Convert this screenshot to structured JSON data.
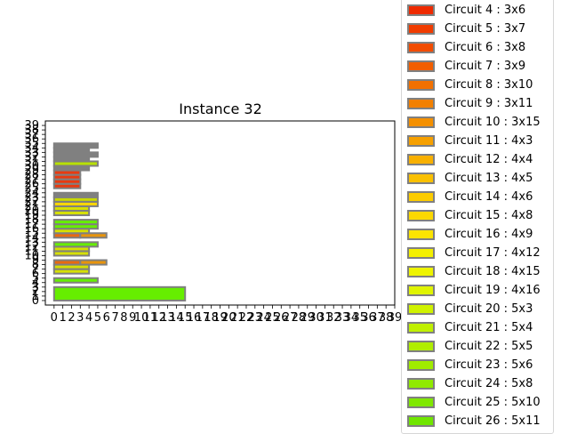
{
  "chart_data": {
    "type": "bar",
    "title": "Instance 32",
    "xlabel": "",
    "ylabel": "",
    "xlim": [
      -1,
      39
    ],
    "ylim": [
      -1,
      40
    ],
    "xticks": [
      "0",
      "1",
      "2",
      "3",
      "4",
      "5",
      "6",
      "7",
      "8",
      "9",
      "10",
      "11",
      "12",
      "13",
      "14",
      "15",
      "16",
      "17",
      "18",
      "19",
      "20",
      "21",
      "22",
      "23",
      "24",
      "25",
      "26",
      "27",
      "28",
      "29",
      "30",
      "31",
      "32",
      "33",
      "34",
      "35",
      "36",
      "37",
      "38",
      "39"
    ],
    "legend_position": "right (outside)",
    "grid": false,
    "bar_edge_color": "#808080",
    "rectangles": [
      {
        "x": 0,
        "y": 0,
        "w": 15,
        "h": 3,
        "color": "#66ee00"
      },
      {
        "x": 0,
        "y": 4,
        "w": 5,
        "h": 1,
        "color": "#66ee00"
      },
      {
        "x": 0,
        "y": 6,
        "w": 4,
        "h": 1,
        "color": "#d6e000"
      },
      {
        "x": 0,
        "y": 7,
        "w": 4,
        "h": 1,
        "color": "#d6e000"
      },
      {
        "x": 0,
        "y": 8,
        "w": 3,
        "h": 1,
        "color": "#e86a10"
      },
      {
        "x": 3,
        "y": 8,
        "w": 3,
        "h": 1,
        "color": "#e8940c"
      },
      {
        "x": 0,
        "y": 10,
        "w": 4,
        "h": 1,
        "color": "#d6e000"
      },
      {
        "x": 0,
        "y": 11,
        "w": 4,
        "h": 1,
        "color": "#d6e000"
      },
      {
        "x": 0,
        "y": 12,
        "w": 5,
        "h": 1,
        "color": "#66ee00"
      },
      {
        "x": 0,
        "y": 14,
        "w": 3,
        "h": 1,
        "color": "#e86a10"
      },
      {
        "x": 3,
        "y": 14,
        "w": 3,
        "h": 1,
        "color": "#e8940c"
      },
      {
        "x": 0,
        "y": 15,
        "w": 4,
        "h": 1,
        "color": "#d6e000"
      },
      {
        "x": 0,
        "y": 16,
        "w": 5,
        "h": 1,
        "color": "#66ee00"
      },
      {
        "x": 0,
        "y": 17,
        "w": 5,
        "h": 1,
        "color": "#66ee00"
      },
      {
        "x": 0,
        "y": 19,
        "w": 4,
        "h": 1,
        "color": "#d6e000"
      },
      {
        "x": 0,
        "y": 20,
        "w": 4,
        "h": 1,
        "color": "#d6e000"
      },
      {
        "x": 0,
        "y": 21,
        "w": 5,
        "h": 1,
        "color": "#ffd700"
      },
      {
        "x": 0,
        "y": 22,
        "w": 5,
        "h": 1,
        "color": "#c8d800"
      },
      {
        "x": 0,
        "y": 23,
        "w": 5,
        "h": 1,
        "color": "#808080"
      },
      {
        "x": 0,
        "y": 25,
        "w": 3,
        "h": 1,
        "color": "#e83a10"
      },
      {
        "x": 0,
        "y": 26,
        "w": 3,
        "h": 1,
        "color": "#e83a10"
      },
      {
        "x": 0,
        "y": 27,
        "w": 3,
        "h": 1,
        "color": "#e83a10"
      },
      {
        "x": 0,
        "y": 28,
        "w": 3,
        "h": 1,
        "color": "#e83a10"
      },
      {
        "x": 0,
        "y": 29,
        "w": 4,
        "h": 1,
        "color": "#808080"
      },
      {
        "x": 0,
        "y": 30,
        "w": 5,
        "h": 1,
        "color": "#b8e000"
      },
      {
        "x": 0,
        "y": 31,
        "w": 4,
        "h": 1,
        "color": "#808080"
      },
      {
        "x": 0,
        "y": 32,
        "w": 5,
        "h": 1,
        "color": "#808080"
      },
      {
        "x": 0,
        "y": 33,
        "w": 4,
        "h": 1,
        "color": "#808080"
      },
      {
        "x": 0,
        "y": 34,
        "w": 5,
        "h": 1,
        "color": "#808080"
      }
    ],
    "legend": [
      {
        "label": "Circuit 4 : 3x6",
        "color": "#ee2a00"
      },
      {
        "label": "Circuit 5 : 3x7",
        "color": "#f03c00"
      },
      {
        "label": "Circuit 6 : 3x8",
        "color": "#f24c00"
      },
      {
        "label": "Circuit 7 : 3x9",
        "color": "#f25e00"
      },
      {
        "label": "Circuit 8 : 3x10",
        "color": "#f27000"
      },
      {
        "label": "Circuit 9 : 3x11",
        "color": "#f28000"
      },
      {
        "label": "Circuit 10 : 3x15",
        "color": "#f49000"
      },
      {
        "label": "Circuit 11 : 4x3",
        "color": "#f6a000"
      },
      {
        "label": "Circuit 12 : 4x4",
        "color": "#f8b000"
      },
      {
        "label": "Circuit 13 : 4x5",
        "color": "#fac000"
      },
      {
        "label": "Circuit 14 : 4x6",
        "color": "#fccc00"
      },
      {
        "label": "Circuit 15 : 4x8",
        "color": "#fcd800"
      },
      {
        "label": "Circuit 16 : 4x9",
        "color": "#fce400"
      },
      {
        "label": "Circuit 17 : 4x12",
        "color": "#f4f000"
      },
      {
        "label": "Circuit 18 : 4x15",
        "color": "#eef400"
      },
      {
        "label": "Circuit 19 : 4x16",
        "color": "#e0f400"
      },
      {
        "label": "Circuit 20 : 5x3",
        "color": "#d0f200"
      },
      {
        "label": "Circuit 21 : 5x4",
        "color": "#c0f000"
      },
      {
        "label": "Circuit 22 : 5x5",
        "color": "#b0ee00"
      },
      {
        "label": "Circuit 23 : 5x6",
        "color": "#a0ec00"
      },
      {
        "label": "Circuit 24 : 5x8",
        "color": "#90ea00"
      },
      {
        "label": "Circuit 25 : 5x10",
        "color": "#80e800"
      },
      {
        "label": "Circuit 26 : 5x11",
        "color": "#70e600"
      }
    ]
  }
}
